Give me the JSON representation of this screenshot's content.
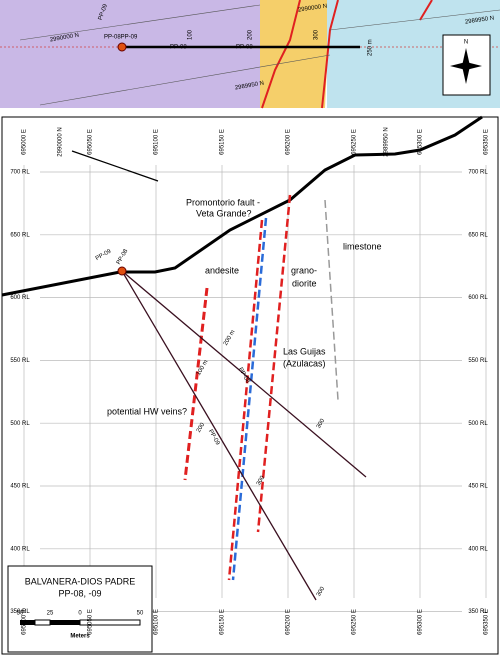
{
  "top_map": {
    "grid_labels": [
      "2990000 N",
      "2989950 N",
      "2990000 N",
      "2989950 N"
    ],
    "hole_labels": [
      "PP-08PP-09",
      "PP-09",
      "PP-08",
      "PP-08"
    ],
    "depth_labels": [
      "100",
      "200",
      "300",
      "250 m"
    ],
    "north": "N"
  },
  "section": {
    "eastings": [
      "695000 E",
      "695050 E",
      "695100 E",
      "695150 E",
      "695200 E",
      "695250 E",
      "695300 E",
      "695350 E"
    ],
    "northings": [
      "2990000 N",
      "2989950 N"
    ],
    "elevations": [
      "700 RL",
      "650 RL",
      "600 RL",
      "550 RL",
      "500 RL",
      "450 RL",
      "400 RL",
      "350 RL"
    ],
    "units": [
      "Promontorio fault -",
      "Veta Grande?",
      "limestone",
      "andesite",
      "grano-",
      "diorite",
      "Las Guijas",
      "(Azulacas)",
      "potential HW veins?"
    ],
    "hole_labels": [
      "PP-09",
      "PP-08",
      "PP-08",
      "PP-09"
    ],
    "depth_labels": [
      "200 m",
      "100 m",
      "200",
      "300",
      "300",
      "300"
    ]
  },
  "legend": {
    "title": "BALVANERA-DIOS PADRE",
    "subtitle": "PP-08, -09",
    "scale_labels": [
      "50",
      "25",
      "0",
      "50"
    ],
    "scale_unit": "Meters"
  }
}
